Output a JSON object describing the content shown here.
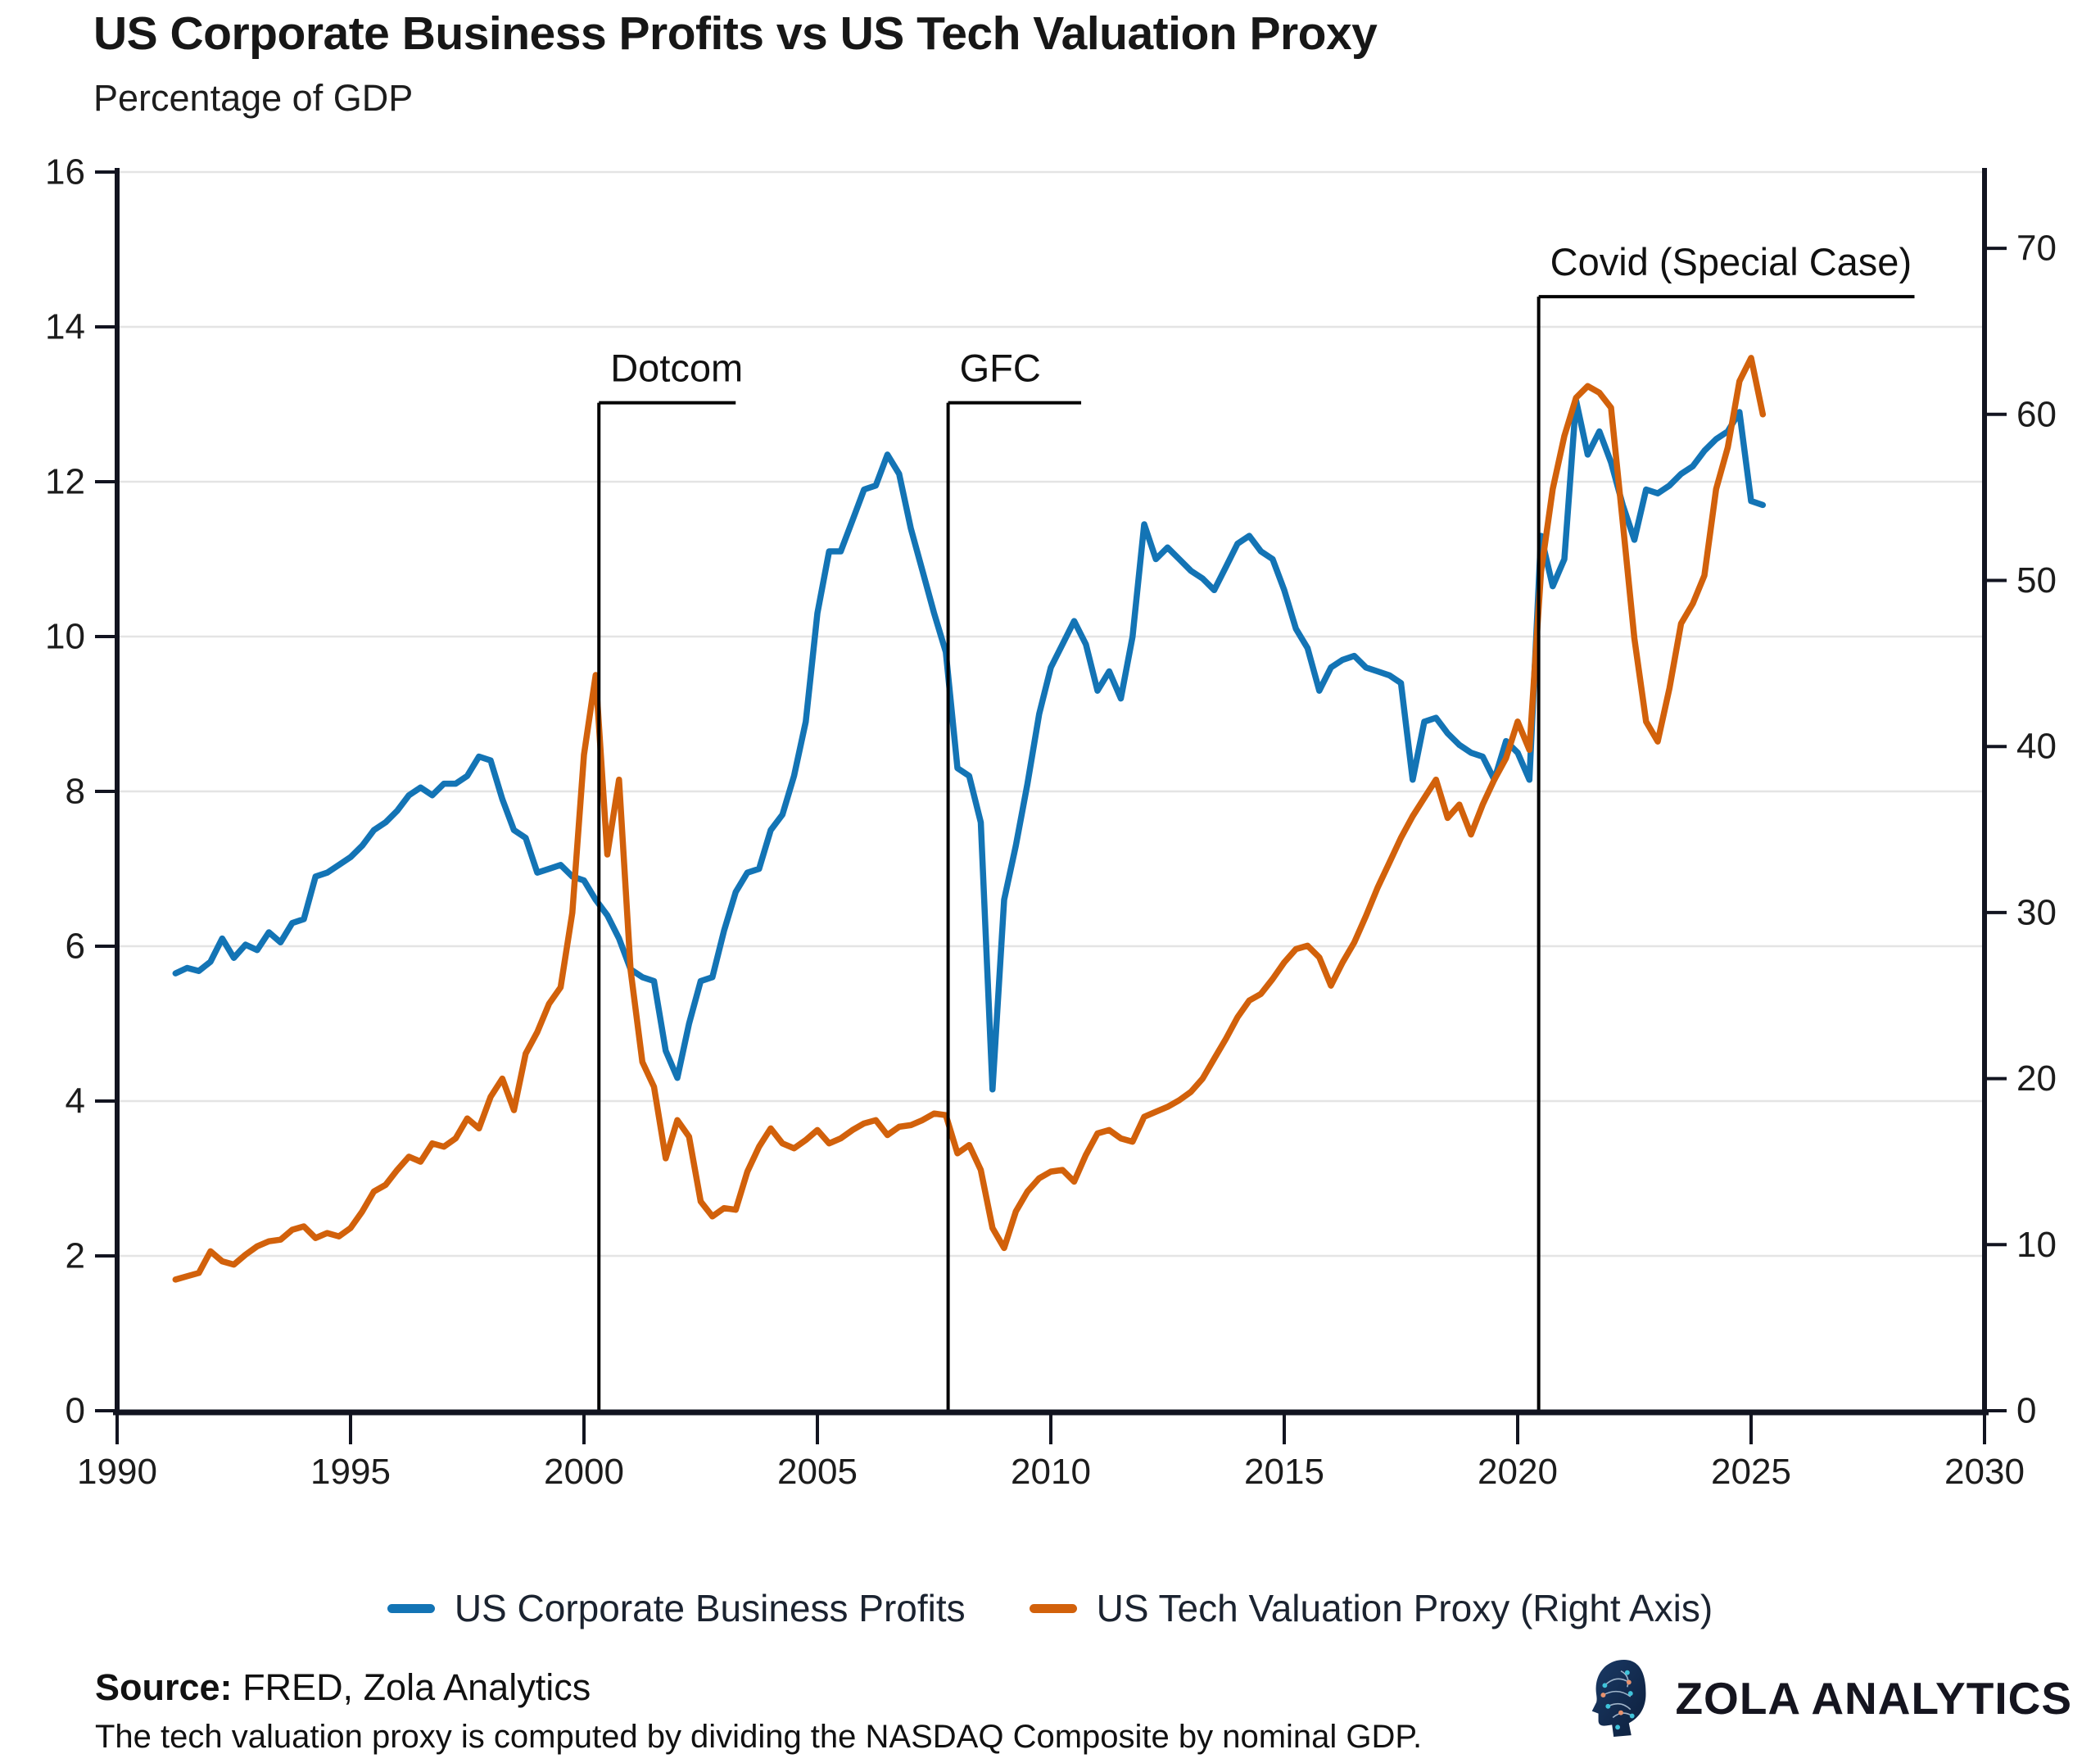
{
  "header": {
    "title": "US Corporate Business Profits vs US Tech Valuation Proxy",
    "subtitle": "Percentage of GDP"
  },
  "legend": {
    "items": [
      {
        "label": "US Corporate Business Profits",
        "color": "#1374b5"
      },
      {
        "label": "US Tech Valuation Proxy (Right Axis)",
        "color": "#d2610b"
      }
    ]
  },
  "footer": {
    "source_label": "Source:",
    "source_text": "FRED, Zola Analytics",
    "note": "The tech valuation proxy is computed by dividing the NASDAQ Composite by nominal GDP.",
    "brand": "ZOLA ANALYTICS"
  },
  "chart_data": {
    "type": "line",
    "title": "US Corporate Business Profits vs US Tech Valuation Proxy",
    "subtitle": "Percentage of GDP",
    "grid": "horizontal",
    "legend_position": "bottom-center",
    "x_axis": {
      "range": [
        1990,
        2030
      ],
      "ticks": [
        1990,
        1995,
        2000,
        2005,
        2010,
        2015,
        2020,
        2025,
        2030
      ]
    },
    "left_y_axis": {
      "label": "Percentage of GDP",
      "range": [
        0,
        16
      ],
      "ticks": [
        0,
        2,
        4,
        6,
        8,
        10,
        12,
        14,
        16
      ]
    },
    "right_y_axis": {
      "range": [
        0,
        74.6
      ],
      "ticks": [
        0,
        10,
        20,
        30,
        40,
        50,
        60,
        70
      ]
    },
    "x_start": 1991.25,
    "x_step": 0.25,
    "series": [
      {
        "name": "US Corporate Business Profits",
        "axis": "left",
        "color": "#1374b5",
        "values": [
          5.65,
          5.72,
          5.68,
          5.8,
          6.1,
          5.85,
          6.02,
          5.95,
          6.18,
          6.05,
          6.3,
          6.35,
          6.9,
          6.95,
          7.05,
          7.15,
          7.3,
          7.5,
          7.6,
          7.75,
          7.95,
          8.05,
          7.95,
          8.1,
          8.1,
          8.2,
          8.45,
          8.4,
          7.9,
          7.5,
          7.4,
          6.95,
          7.0,
          7.05,
          6.9,
          6.85,
          6.6,
          6.4,
          6.1,
          5.7,
          5.6,
          5.55,
          4.65,
          4.3,
          5.0,
          5.55,
          5.6,
          6.2,
          6.7,
          6.95,
          7.0,
          7.5,
          7.7,
          8.2,
          8.9,
          10.3,
          11.1,
          11.1,
          11.5,
          11.9,
          11.95,
          12.35,
          12.1,
          11.4,
          10.85,
          10.3,
          9.8,
          8.3,
          8.2,
          7.6,
          4.15,
          6.6,
          7.3,
          8.1,
          9.0,
          9.6,
          9.9,
          10.2,
          9.9,
          9.3,
          9.55,
          9.2,
          10.0,
          11.45,
          11.0,
          11.15,
          11.0,
          10.85,
          10.75,
          10.6,
          10.9,
          11.2,
          11.3,
          11.1,
          11.0,
          10.6,
          10.1,
          9.85,
          9.3,
          9.6,
          9.7,
          9.75,
          9.6,
          9.55,
          9.5,
          9.4,
          8.15,
          8.9,
          8.95,
          8.75,
          8.6,
          8.5,
          8.45,
          8.15,
          8.65,
          8.5,
          8.15,
          11.3,
          10.65,
          11.0,
          13.05,
          12.35,
          12.65,
          12.25,
          11.7,
          11.25,
          11.9,
          11.85,
          11.95,
          12.1,
          12.2,
          12.4,
          12.55,
          12.65,
          12.9,
          11.75,
          11.7
        ]
      },
      {
        "name": "US Tech Valuation Proxy (Right Axis)",
        "axis": "right",
        "color": "#d2610b",
        "values": [
          7.9,
          8.1,
          8.3,
          9.6,
          9.0,
          8.8,
          9.4,
          9.9,
          10.2,
          10.3,
          10.9,
          11.1,
          10.4,
          10.7,
          10.5,
          11.0,
          12.0,
          13.2,
          13.6,
          14.5,
          15.3,
          15.0,
          16.1,
          15.9,
          16.4,
          17.6,
          17.0,
          18.9,
          20.0,
          18.1,
          21.5,
          22.8,
          24.5,
          25.5,
          30.0,
          39.5,
          44.3,
          33.5,
          38.0,
          26.5,
          21.0,
          19.5,
          15.2,
          17.5,
          16.5,
          12.6,
          11.7,
          12.2,
          12.1,
          14.4,
          15.9,
          17.0,
          16.1,
          15.8,
          16.3,
          16.9,
          16.1,
          16.4,
          16.9,
          17.3,
          17.5,
          16.6,
          17.1,
          17.2,
          17.5,
          17.9,
          17.8,
          15.5,
          16.0,
          14.5,
          11.0,
          9.8,
          12.0,
          13.2,
          14.0,
          14.4,
          14.5,
          13.8,
          15.4,
          16.7,
          16.9,
          16.4,
          16.2,
          17.7,
          18.0,
          18.3,
          18.7,
          19.2,
          20.0,
          21.2,
          22.4,
          23.7,
          24.7,
          25.1,
          26.0,
          27.0,
          27.8,
          28.0,
          27.3,
          25.6,
          27.0,
          28.2,
          29.8,
          31.5,
          33.0,
          34.5,
          35.8,
          36.9,
          38.0,
          35.7,
          36.5,
          34.7,
          36.5,
          38.0,
          39.3,
          41.5,
          39.8,
          50.5,
          55.5,
          58.7,
          61.0,
          61.7,
          61.3,
          60.4,
          53.5,
          46.5,
          41.5,
          40.3,
          43.5,
          47.4,
          48.6,
          50.3,
          55.5,
          58.0,
          62.0,
          63.4,
          60.0
        ]
      }
    ],
    "annotations": [
      {
        "label": "Dotcom",
        "x": 2000.32,
        "top": 13.02,
        "end_x": 2003.25
      },
      {
        "label": "GFC",
        "x": 2007.8,
        "top": 13.02,
        "end_x": 2010.65
      },
      {
        "label": "Covid (Special Case)",
        "x": 2020.45,
        "top": 14.39,
        "end_x": 2028.5
      }
    ]
  }
}
